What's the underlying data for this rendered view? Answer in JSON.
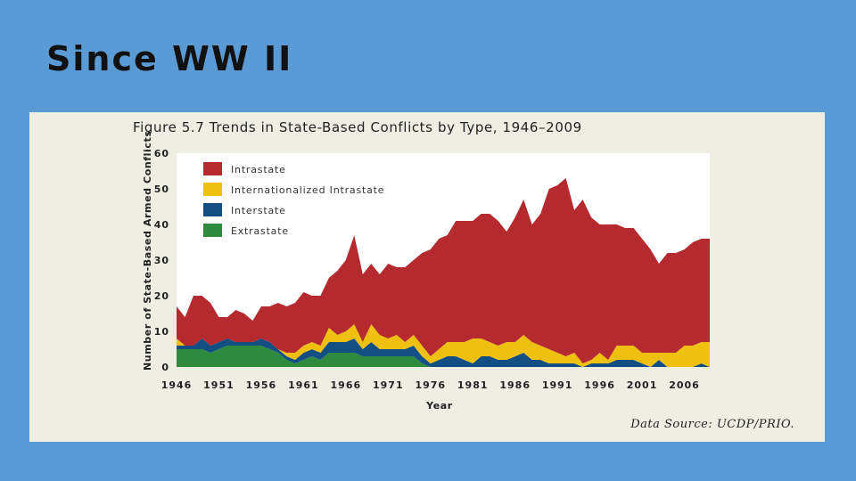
{
  "slide": {
    "title": "Since WW II"
  },
  "source": "Data Source: UCDP/PRIO.",
  "chart_data": {
    "type": "area",
    "stacked": true,
    "title": "Figure 5.7 Trends in State-Based Conflicts by Type, 1946–2009",
    "xlabel": "Year",
    "ylabel": "Number of State-Based Armed Conflicts",
    "xlim": [
      1946,
      2009
    ],
    "ylim": [
      0,
      60
    ],
    "x_ticks": [
      1946,
      1951,
      1956,
      1961,
      1966,
      1971,
      1976,
      1981,
      1986,
      1991,
      1996,
      2001,
      2006
    ],
    "y_ticks": [
      0,
      10,
      20,
      30,
      40,
      50,
      60
    ],
    "legend_position": "top-left",
    "grid": false,
    "series": [
      {
        "name": "Extrastate",
        "color": "#2e8b3e",
        "points": [
          [
            1946,
            5
          ],
          [
            1947,
            5
          ],
          [
            1948,
            5
          ],
          [
            1949,
            5
          ],
          [
            1950,
            4
          ],
          [
            1951,
            5
          ],
          [
            1952,
            6
          ],
          [
            1953,
            6
          ],
          [
            1954,
            6
          ],
          [
            1955,
            6
          ],
          [
            1956,
            6
          ],
          [
            1957,
            5
          ],
          [
            1958,
            4
          ],
          [
            1959,
            2
          ],
          [
            1960,
            1
          ],
          [
            1961,
            2
          ],
          [
            1962,
            3
          ],
          [
            1963,
            2
          ],
          [
            1964,
            4
          ],
          [
            1965,
            4
          ],
          [
            1966,
            4
          ],
          [
            1967,
            4
          ],
          [
            1968,
            3
          ],
          [
            1969,
            3
          ],
          [
            1970,
            3
          ],
          [
            1971,
            3
          ],
          [
            1972,
            3
          ],
          [
            1973,
            3
          ],
          [
            1974,
            3
          ],
          [
            1975,
            1
          ],
          [
            1976,
            0
          ],
          [
            2009,
            0
          ]
        ]
      },
      {
        "name": "Interstate",
        "color": "#134f83",
        "points": [
          [
            1946,
            1
          ],
          [
            1947,
            1
          ],
          [
            1948,
            1
          ],
          [
            1949,
            3
          ],
          [
            1950,
            2
          ],
          [
            1951,
            2
          ],
          [
            1952,
            2
          ],
          [
            1953,
            1
          ],
          [
            1954,
            1
          ],
          [
            1955,
            1
          ],
          [
            1956,
            2
          ],
          [
            1957,
            2
          ],
          [
            1958,
            1
          ],
          [
            1959,
            1
          ],
          [
            1960,
            1
          ],
          [
            1961,
            2
          ],
          [
            1962,
            2
          ],
          [
            1963,
            2
          ],
          [
            1964,
            3
          ],
          [
            1965,
            3
          ],
          [
            1966,
            3
          ],
          [
            1967,
            4
          ],
          [
            1968,
            2
          ],
          [
            1969,
            4
          ],
          [
            1970,
            2
          ],
          [
            1971,
            2
          ],
          [
            1972,
            2
          ],
          [
            1973,
            2
          ],
          [
            1974,
            3
          ],
          [
            1975,
            2
          ],
          [
            1976,
            1
          ],
          [
            1977,
            2
          ],
          [
            1978,
            3
          ],
          [
            1979,
            3
          ],
          [
            1980,
            2
          ],
          [
            1981,
            1
          ],
          [
            1982,
            3
          ],
          [
            1983,
            3
          ],
          [
            1984,
            2
          ],
          [
            1985,
            2
          ],
          [
            1986,
            3
          ],
          [
            1987,
            4
          ],
          [
            1988,
            2
          ],
          [
            1989,
            2
          ],
          [
            1990,
            1
          ],
          [
            1991,
            1
          ],
          [
            1992,
            1
          ],
          [
            1993,
            1
          ],
          [
            1994,
            0
          ],
          [
            1995,
            1
          ],
          [
            1996,
            1
          ],
          [
            1997,
            1
          ],
          [
            1998,
            2
          ],
          [
            1999,
            2
          ],
          [
            2000,
            2
          ],
          [
            2001,
            1
          ],
          [
            2002,
            0
          ],
          [
            2003,
            2
          ],
          [
            2004,
            0
          ],
          [
            2005,
            0
          ],
          [
            2006,
            0
          ],
          [
            2007,
            0
          ],
          [
            2008,
            1
          ],
          [
            2009,
            0
          ]
        ]
      },
      {
        "name": "Internationalized Intrastate",
        "color": "#f0c010",
        "points": [
          [
            1946,
            2
          ],
          [
            1947,
            0
          ],
          [
            1948,
            0
          ],
          [
            1949,
            0
          ],
          [
            1950,
            0
          ],
          [
            1951,
            0
          ],
          [
            1952,
            0
          ],
          [
            1953,
            0
          ],
          [
            1954,
            0
          ],
          [
            1955,
            0
          ],
          [
            1956,
            0
          ],
          [
            1957,
            0
          ],
          [
            1958,
            0
          ],
          [
            1959,
            1
          ],
          [
            1960,
            2
          ],
          [
            1961,
            2
          ],
          [
            1962,
            2
          ],
          [
            1963,
            2
          ],
          [
            1964,
            4
          ],
          [
            1965,
            2
          ],
          [
            1966,
            3
          ],
          [
            1967,
            4
          ],
          [
            1968,
            2
          ],
          [
            1969,
            5
          ],
          [
            1970,
            4
          ],
          [
            1971,
            3
          ],
          [
            1972,
            4
          ],
          [
            1973,
            2
          ],
          [
            1974,
            3
          ],
          [
            1975,
            3
          ],
          [
            1976,
            2
          ],
          [
            1977,
            3
          ],
          [
            1978,
            4
          ],
          [
            1979,
            4
          ],
          [
            1980,
            5
          ],
          [
            1981,
            7
          ],
          [
            1982,
            5
          ],
          [
            1983,
            4
          ],
          [
            1984,
            4
          ],
          [
            1985,
            5
          ],
          [
            1986,
            4
          ],
          [
            1987,
            5
          ],
          [
            1988,
            5
          ],
          [
            1989,
            4
          ],
          [
            1990,
            4
          ],
          [
            1991,
            3
          ],
          [
            1992,
            2
          ],
          [
            1993,
            3
          ],
          [
            1994,
            1
          ],
          [
            1995,
            1
          ],
          [
            1996,
            3
          ],
          [
            1997,
            1
          ],
          [
            1998,
            4
          ],
          [
            1999,
            4
          ],
          [
            2000,
            4
          ],
          [
            2001,
            3
          ],
          [
            2002,
            4
          ],
          [
            2003,
            2
          ],
          [
            2004,
            4
          ],
          [
            2005,
            4
          ],
          [
            2006,
            6
          ],
          [
            2007,
            6
          ],
          [
            2008,
            6
          ],
          [
            2009,
            7
          ]
        ]
      },
      {
        "name": "Intrastate",
        "color": "#b52a2e",
        "points": [
          [
            1946,
            9
          ],
          [
            1947,
            8
          ],
          [
            1948,
            14
          ],
          [
            1949,
            12
          ],
          [
            1950,
            12
          ],
          [
            1951,
            7
          ],
          [
            1952,
            6
          ],
          [
            1953,
            9
          ],
          [
            1954,
            8
          ],
          [
            1955,
            6
          ],
          [
            1956,
            9
          ],
          [
            1957,
            10
          ],
          [
            1958,
            13
          ],
          [
            1959,
            13
          ],
          [
            1960,
            14
          ],
          [
            1961,
            15
          ],
          [
            1962,
            13
          ],
          [
            1963,
            14
          ],
          [
            1964,
            14
          ],
          [
            1965,
            18
          ],
          [
            1966,
            20
          ],
          [
            1967,
            25
          ],
          [
            1968,
            19
          ],
          [
            1969,
            17
          ],
          [
            1970,
            17
          ],
          [
            1971,
            21
          ],
          [
            1972,
            19
          ],
          [
            1973,
            21
          ],
          [
            1974,
            21
          ],
          [
            1975,
            26
          ],
          [
            1976,
            30
          ],
          [
            1977,
            31
          ],
          [
            1978,
            30
          ],
          [
            1979,
            34
          ],
          [
            1980,
            34
          ],
          [
            1981,
            33
          ],
          [
            1982,
            35
          ],
          [
            1983,
            36
          ],
          [
            1984,
            35
          ],
          [
            1985,
            31
          ],
          [
            1986,
            35
          ],
          [
            1987,
            38
          ],
          [
            1988,
            33
          ],
          [
            1989,
            37
          ],
          [
            1990,
            45
          ],
          [
            1991,
            47
          ],
          [
            1992,
            50
          ],
          [
            1993,
            40
          ],
          [
            1994,
            46
          ],
          [
            1995,
            40
          ],
          [
            1996,
            36
          ],
          [
            1997,
            38
          ],
          [
            1998,
            34
          ],
          [
            1999,
            33
          ],
          [
            2000,
            33
          ],
          [
            2001,
            32
          ],
          [
            2002,
            29
          ],
          [
            2003,
            25
          ],
          [
            2004,
            28
          ],
          [
            2005,
            28
          ],
          [
            2006,
            27
          ],
          [
            2007,
            29
          ],
          [
            2008,
            29
          ],
          [
            2009,
            29
          ]
        ]
      }
    ]
  }
}
